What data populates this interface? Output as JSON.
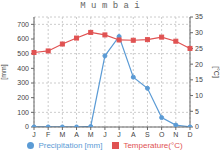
{
  "chart_data": {
    "type": "line",
    "title": "M u m b a i",
    "categories": [
      "J",
      "F",
      "M",
      "A",
      "M",
      "J",
      "J",
      "A",
      "S",
      "O",
      "N",
      "D"
    ],
    "series": [
      {
        "name": "Precipitation [mm]",
        "color": "#5b9bd5",
        "marker": "circle",
        "axis": "y",
        "values": [
          0.6,
          0.5,
          0.3,
          0.1,
          3.6,
          485.0,
          617.0,
          340.0,
          264.0,
          64.0,
          13.0,
          0.5
        ]
      },
      {
        "name": "Temperature(°C)",
        "color": "#e05252",
        "marker": "square",
        "axis": "y2",
        "values": [
          23.7,
          24.2,
          26.4,
          28.3,
          30.1,
          29.3,
          27.7,
          27.6,
          27.8,
          28.6,
          27.3,
          25.0
        ]
      }
    ],
    "ylabel": "[mm]",
    "y2label": "[°C]",
    "ylim": [
      0,
      750
    ],
    "yticks": [
      0,
      100,
      200,
      300,
      400,
      500,
      600,
      700
    ],
    "y2lim": [
      0,
      35
    ],
    "y2ticks": [
      0,
      5,
      10,
      15,
      20,
      25,
      30,
      35
    ],
    "grid": true,
    "legend": "bottom"
  }
}
